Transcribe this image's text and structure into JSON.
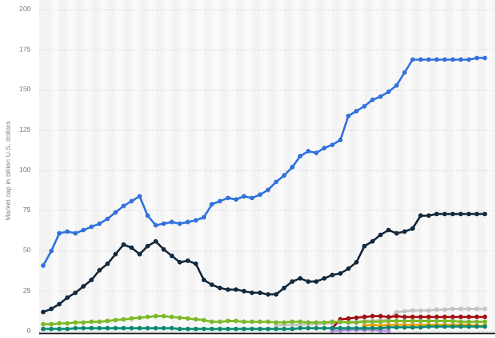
{
  "y_axis": {
    "title": "Market cap in billion U.S. dollars",
    "ticks": [
      "0",
      "25",
      "50",
      "75",
      "100",
      "125",
      "150",
      "175",
      "200"
    ]
  },
  "x_axis": {
    "labels_visible": false,
    "note": "x-axis category labels are cropped out of the screenshot"
  },
  "chart_data": {
    "type": "line",
    "title": "",
    "ylabel": "Market cap in billion U.S. dollars",
    "ylim": [
      0,
      200
    ],
    "y_ticks": [
      0,
      25,
      50,
      75,
      100,
      125,
      150,
      175,
      200
    ],
    "grid": "horizontal dotted gridlines; alternating light vertical background bands",
    "legend": "none visible",
    "num_points": 56,
    "marker": "filled circles on every data point",
    "series": [
      {
        "name": "purple",
        "color": "#b48ae0",
        "values": [
          null,
          null,
          null,
          null,
          null,
          null,
          null,
          null,
          null,
          null,
          null,
          null,
          null,
          null,
          null,
          null,
          null,
          null,
          null,
          null,
          null,
          null,
          null,
          null,
          null,
          null,
          null,
          null,
          null,
          null,
          null,
          null,
          null,
          null,
          null,
          null,
          0.5,
          0.5,
          1,
          1,
          1,
          1,
          0.5,
          0.5,
          null,
          null,
          null,
          null,
          null,
          null,
          null,
          null,
          null,
          null,
          null,
          null
        ]
      },
      {
        "name": "gray",
        "color": "#c4c4c4",
        "values": [
          null,
          null,
          null,
          null,
          null,
          null,
          null,
          null,
          null,
          null,
          null,
          null,
          null,
          null,
          null,
          null,
          null,
          null,
          null,
          null,
          null,
          null,
          null,
          null,
          null,
          null,
          null,
          null,
          null,
          3.5,
          4,
          4,
          4,
          4.5,
          4.5,
          5,
          5,
          5.5,
          6,
          6,
          6.5,
          6.5,
          7,
          7,
          12,
          12.5,
          13,
          13,
          13,
          13.5,
          13.5,
          14,
          14,
          14,
          14,
          14
        ]
      },
      {
        "name": "orange",
        "color": "#f0a202",
        "values": [
          null,
          null,
          null,
          null,
          null,
          null,
          null,
          null,
          null,
          null,
          null,
          null,
          null,
          null,
          null,
          null,
          null,
          null,
          null,
          null,
          null,
          null,
          null,
          null,
          null,
          null,
          null,
          null,
          null,
          null,
          null,
          null,
          null,
          null,
          null,
          null,
          null,
          null,
          null,
          null,
          3.5,
          4,
          3.5,
          4,
          4,
          4,
          4,
          4,
          4,
          4,
          4,
          4,
          4,
          4,
          3.5,
          3.5
        ]
      },
      {
        "name": "dark-red",
        "color": "#a60f15",
        "values": [
          null,
          null,
          null,
          null,
          null,
          null,
          null,
          null,
          null,
          null,
          null,
          null,
          null,
          null,
          null,
          null,
          null,
          null,
          null,
          null,
          null,
          null,
          null,
          null,
          null,
          null,
          null,
          null,
          null,
          null,
          null,
          null,
          null,
          null,
          null,
          null,
          2,
          7.5,
          8,
          8.5,
          9,
          9.5,
          9.5,
          9,
          9.5,
          9,
          9,
          9,
          9,
          9,
          9,
          9,
          9,
          9,
          9,
          9
        ]
      },
      {
        "name": "light-green",
        "color": "#7db928",
        "values": [
          4.5,
          4.5,
          5,
          5,
          5.5,
          5.5,
          6,
          6,
          6.5,
          7,
          7.5,
          8,
          8.5,
          9,
          9.5,
          9.5,
          9,
          8.5,
          8,
          7.5,
          7,
          6,
          6,
          6.5,
          6.5,
          6,
          6,
          6,
          6,
          5.5,
          5.5,
          6,
          6,
          5.5,
          5.5,
          5.5,
          6,
          6,
          5.5,
          5.5,
          6,
          6,
          6,
          6.5,
          6.5,
          6.5,
          6.5,
          6.5,
          6.5,
          6.5,
          6.5,
          6.5,
          6,
          6,
          6,
          6
        ]
      },
      {
        "name": "teal",
        "color": "#0d8a72",
        "values": [
          1.5,
          1.5,
          1.5,
          1.5,
          2,
          2,
          2,
          2,
          2,
          2,
          2,
          2,
          2,
          2,
          2,
          2,
          2,
          1.5,
          1.5,
          1.5,
          1.5,
          1.5,
          1.5,
          1.5,
          1.5,
          1.5,
          1.5,
          1.5,
          1.5,
          1.5,
          1.5,
          1.5,
          2,
          2,
          2,
          2,
          2,
          2,
          2,
          2,
          2,
          2,
          2,
          2.5,
          2.5,
          2.5,
          2.5,
          2.5,
          3,
          3,
          3,
          3,
          3,
          3,
          3,
          3
        ]
      },
      {
        "name": "dark-navy",
        "color": "#162a3e",
        "values": [
          12,
          14,
          17,
          21,
          24,
          28,
          32,
          38,
          42,
          48,
          54,
          52,
          48,
          53,
          56,
          51,
          47,
          43,
          44,
          42,
          32,
          29,
          27,
          26,
          26,
          25,
          24,
          24,
          23,
          23,
          27,
          31,
          33,
          31,
          31,
          33,
          35,
          36,
          39,
          43,
          53,
          56,
          60,
          63,
          61,
          62,
          64,
          72,
          72,
          73,
          73,
          73,
          73,
          73,
          73,
          73
        ]
      },
      {
        "name": "blue",
        "color": "#3273dd",
        "values": [
          41,
          50,
          61,
          62,
          61,
          63,
          65,
          67,
          70,
          74,
          78,
          81,
          84,
          72,
          66,
          67,
          68,
          67,
          68,
          69,
          71,
          79,
          81,
          83,
          82,
          84,
          83,
          85,
          88,
          93,
          97,
          102,
          109,
          112,
          111,
          114,
          116,
          119,
          134,
          137,
          140,
          144,
          146,
          149,
          153,
          161,
          169,
          169,
          169,
          169,
          169,
          169,
          169,
          169,
          170,
          170
        ]
      }
    ]
  }
}
